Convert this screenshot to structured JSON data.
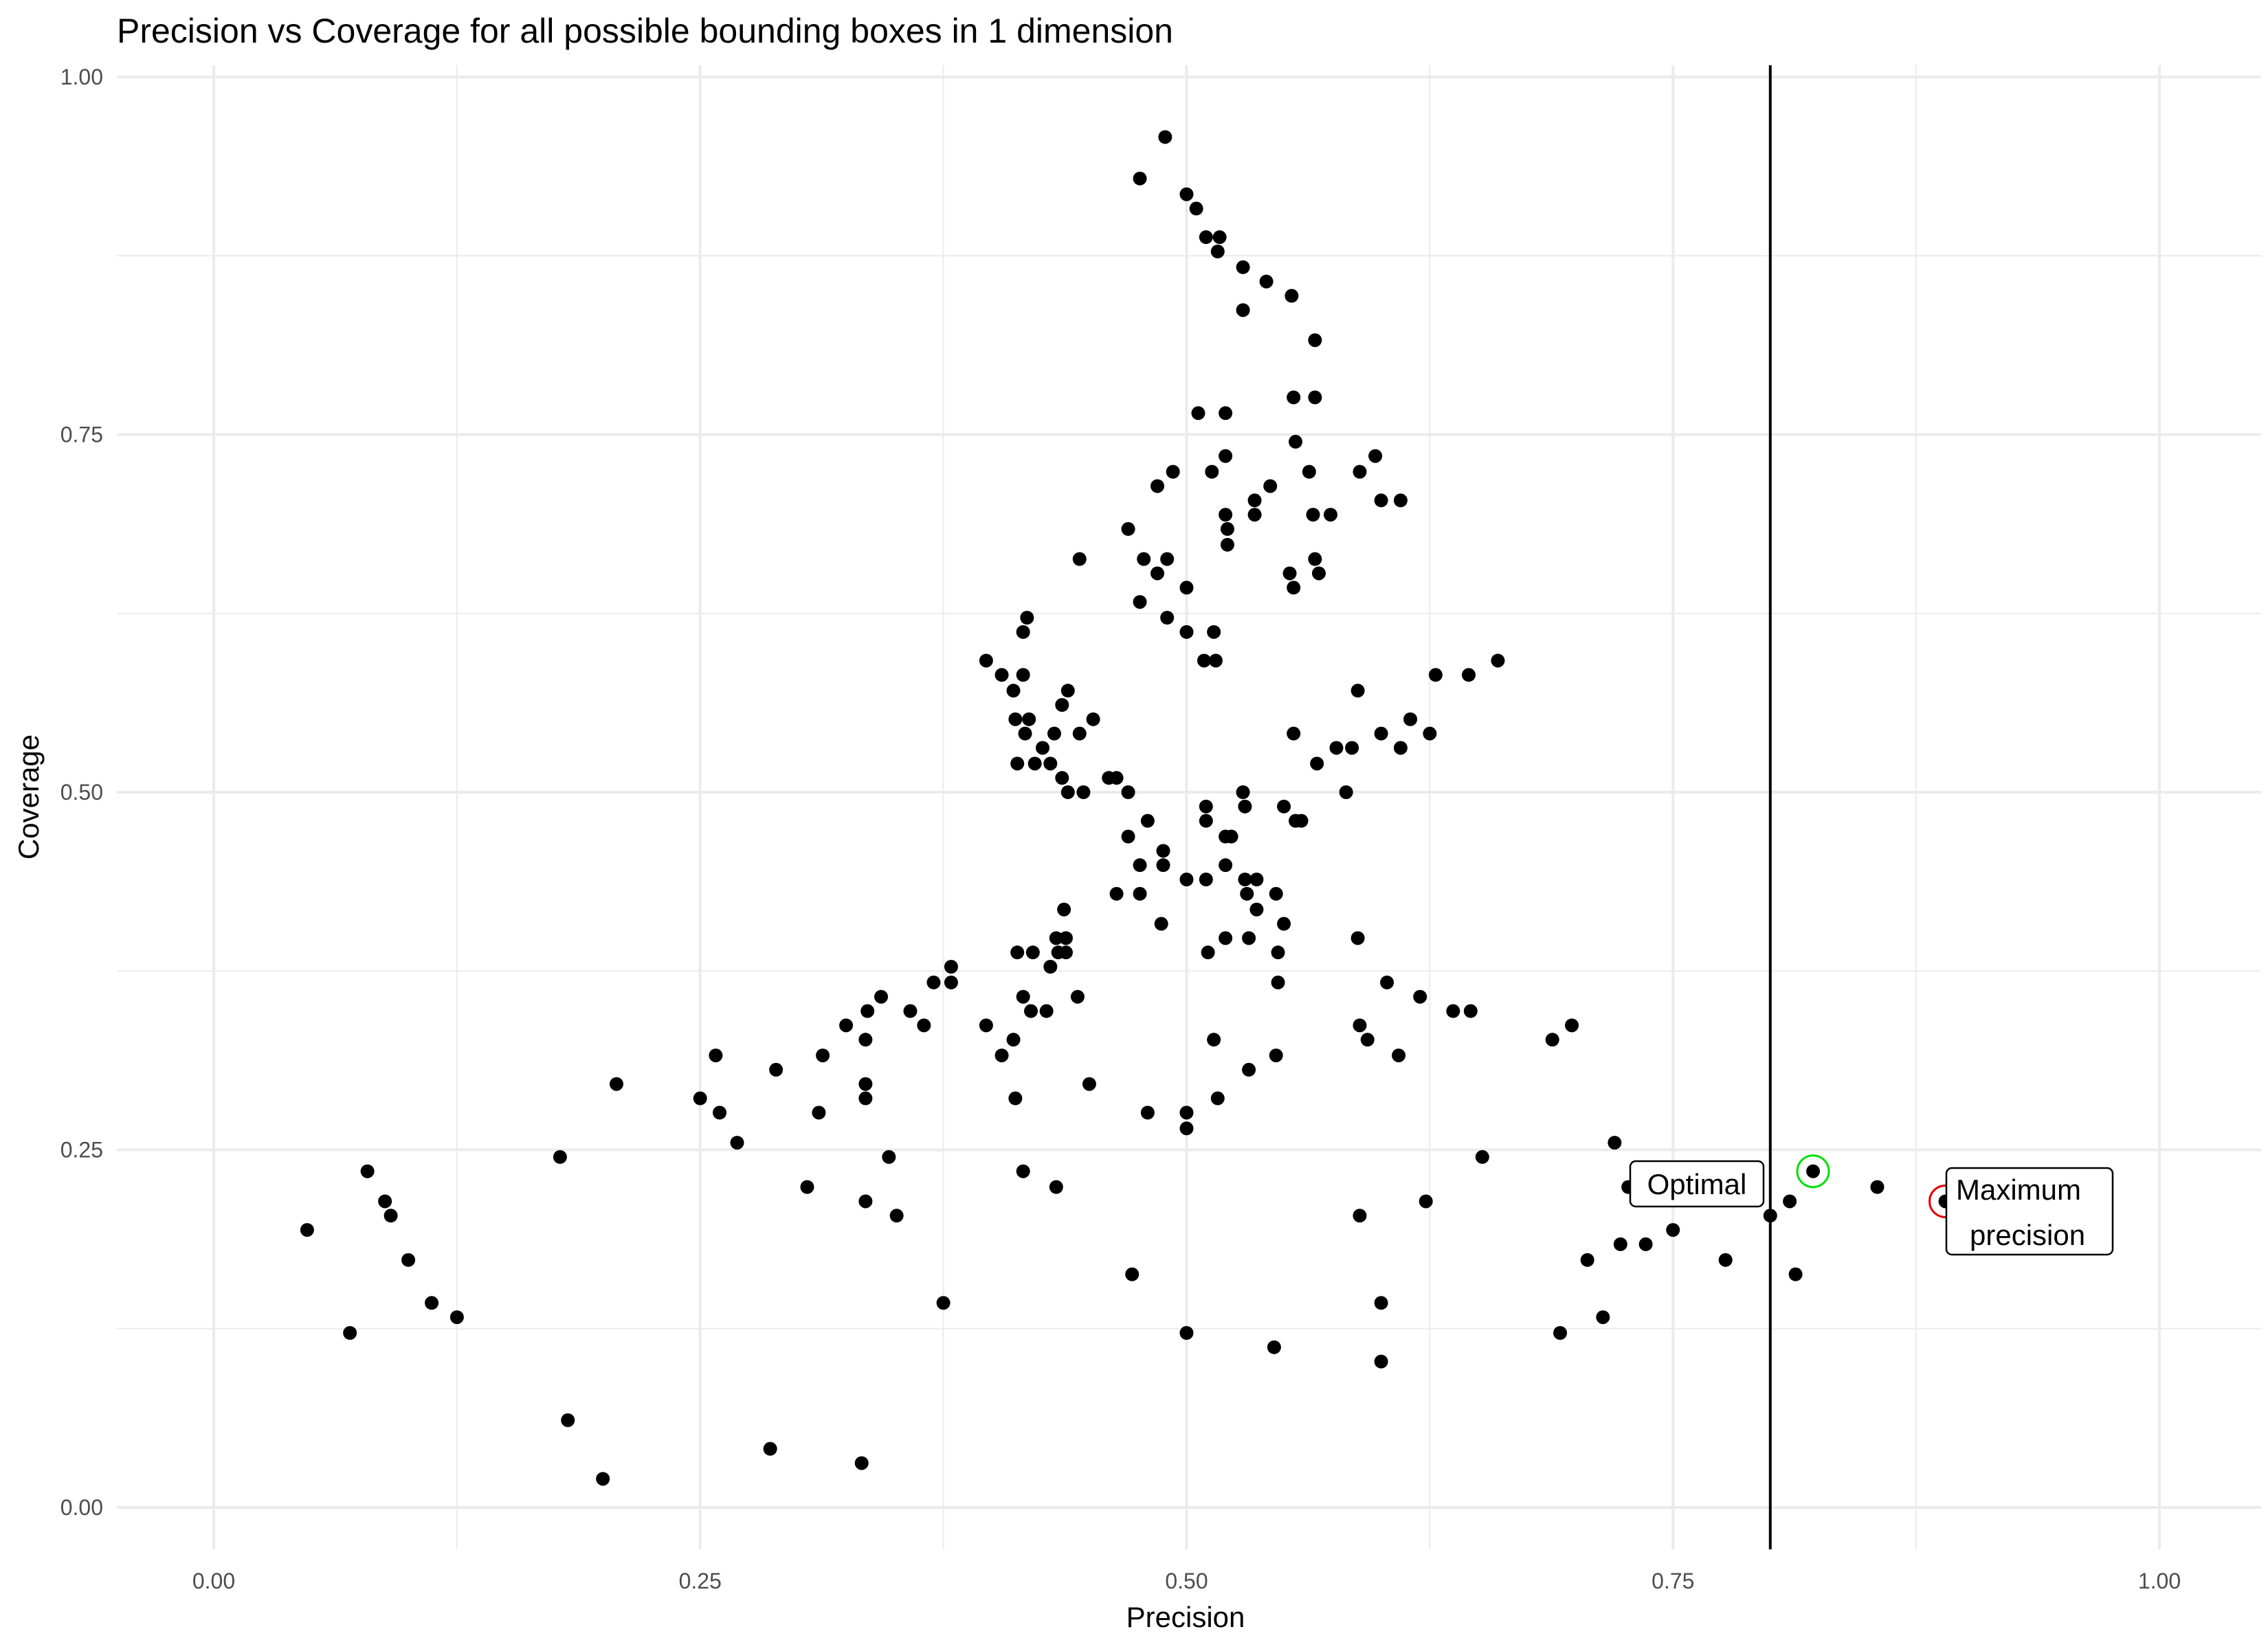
{
  "chart_data": {
    "type": "scatter",
    "title": "Precision vs Coverage for all possible bounding boxes in 1 dimension",
    "xlabel": "Precision",
    "ylabel": "Coverage",
    "xlim": [
      -0.05,
      1.05
    ],
    "ylim": [
      -0.03,
      1.01
    ],
    "x_ticks": [
      0,
      0.25,
      0.5,
      0.75,
      1
    ],
    "x_tick_labels": [
      "0.00",
      "0.25",
      "0.50",
      "0.75",
      "1.00"
    ],
    "y_ticks": [
      0,
      0.25,
      0.5,
      0.75,
      1
    ],
    "y_tick_labels": [
      "0.00",
      "0.25",
      "0.50",
      "0.75",
      "1.00"
    ],
    "grid": true,
    "vline": 0.8,
    "points": [
      [
        0.489,
        0.958
      ],
      [
        0.476,
        0.929
      ],
      [
        0.5,
        0.918
      ],
      [
        0.505,
        0.908
      ],
      [
        0.51,
        0.888
      ],
      [
        0.517,
        0.888
      ],
      [
        0.516,
        0.878
      ],
      [
        0.529,
        0.867
      ],
      [
        0.541,
        0.857
      ],
      [
        0.554,
        0.847
      ],
      [
        0.529,
        0.837
      ],
      [
        0.566,
        0.816
      ],
      [
        0.506,
        0.765
      ],
      [
        0.52,
        0.765
      ],
      [
        0.555,
        0.776
      ],
      [
        0.566,
        0.776
      ],
      [
        0.556,
        0.745
      ],
      [
        0.52,
        0.735
      ],
      [
        0.597,
        0.735
      ],
      [
        0.493,
        0.724
      ],
      [
        0.513,
        0.724
      ],
      [
        0.563,
        0.724
      ],
      [
        0.589,
        0.724
      ],
      [
        0.485,
        0.714
      ],
      [
        0.543,
        0.714
      ],
      [
        0.535,
        0.704
      ],
      [
        0.6,
        0.704
      ],
      [
        0.61,
        0.704
      ],
      [
        0.52,
        0.694
      ],
      [
        0.535,
        0.694
      ],
      [
        0.565,
        0.694
      ],
      [
        0.574,
        0.694
      ],
      [
        0.521,
        0.684
      ],
      [
        0.47,
        0.684
      ],
      [
        0.521,
        0.673
      ],
      [
        0.445,
        0.663
      ],
      [
        0.478,
        0.663
      ],
      [
        0.49,
        0.663
      ],
      [
        0.566,
        0.663
      ],
      [
        0.485,
        0.653
      ],
      [
        0.553,
        0.653
      ],
      [
        0.568,
        0.653
      ],
      [
        0.5,
        0.643
      ],
      [
        0.555,
        0.643
      ],
      [
        0.476,
        0.633
      ],
      [
        0.49,
        0.622
      ],
      [
        0.418,
        0.622
      ],
      [
        0.416,
        0.612
      ],
      [
        0.5,
        0.612
      ],
      [
        0.514,
        0.612
      ],
      [
        0.509,
        0.592
      ],
      [
        0.515,
        0.592
      ],
      [
        0.397,
        0.592
      ],
      [
        0.66,
        0.592
      ],
      [
        0.405,
        0.582
      ],
      [
        0.416,
        0.582
      ],
      [
        0.628,
        0.582
      ],
      [
        0.645,
        0.582
      ],
      [
        0.411,
        0.571
      ],
      [
        0.439,
        0.571
      ],
      [
        0.588,
        0.571
      ],
      [
        0.436,
        0.561
      ],
      [
        0.412,
        0.551
      ],
      [
        0.419,
        0.551
      ],
      [
        0.452,
        0.551
      ],
      [
        0.615,
        0.551
      ],
      [
        0.417,
        0.541
      ],
      [
        0.432,
        0.541
      ],
      [
        0.445,
        0.541
      ],
      [
        0.555,
        0.541
      ],
      [
        0.6,
        0.541
      ],
      [
        0.625,
        0.541
      ],
      [
        0.426,
        0.531
      ],
      [
        0.577,
        0.531
      ],
      [
        0.585,
        0.531
      ],
      [
        0.61,
        0.531
      ],
      [
        0.413,
        0.52
      ],
      [
        0.422,
        0.52
      ],
      [
        0.43,
        0.52
      ],
      [
        0.567,
        0.52
      ],
      [
        0.436,
        0.51
      ],
      [
        0.46,
        0.51
      ],
      [
        0.464,
        0.51
      ],
      [
        0.439,
        0.5
      ],
      [
        0.447,
        0.5
      ],
      [
        0.47,
        0.5
      ],
      [
        0.529,
        0.5
      ],
      [
        0.582,
        0.5
      ],
      [
        0.51,
        0.49
      ],
      [
        0.53,
        0.49
      ],
      [
        0.55,
        0.49
      ],
      [
        0.48,
        0.48
      ],
      [
        0.51,
        0.48
      ],
      [
        0.556,
        0.48
      ],
      [
        0.559,
        0.48
      ],
      [
        0.47,
        0.469
      ],
      [
        0.52,
        0.469
      ],
      [
        0.523,
        0.469
      ],
      [
        0.488,
        0.459
      ],
      [
        0.476,
        0.449
      ],
      [
        0.488,
        0.449
      ],
      [
        0.52,
        0.449
      ],
      [
        0.5,
        0.439
      ],
      [
        0.51,
        0.439
      ],
      [
        0.53,
        0.439
      ],
      [
        0.536,
        0.439
      ],
      [
        0.464,
        0.429
      ],
      [
        0.476,
        0.429
      ],
      [
        0.531,
        0.429
      ],
      [
        0.546,
        0.429
      ],
      [
        0.437,
        0.418
      ],
      [
        0.536,
        0.418
      ],
      [
        0.487,
        0.408
      ],
      [
        0.55,
        0.408
      ],
      [
        0.433,
        0.398
      ],
      [
        0.438,
        0.398
      ],
      [
        0.52,
        0.398
      ],
      [
        0.532,
        0.398
      ],
      [
        0.588,
        0.398
      ],
      [
        0.413,
        0.388
      ],
      [
        0.421,
        0.388
      ],
      [
        0.434,
        0.388
      ],
      [
        0.438,
        0.388
      ],
      [
        0.511,
        0.388
      ],
      [
        0.547,
        0.388
      ],
      [
        0.43,
        0.378
      ],
      [
        0.379,
        0.378
      ],
      [
        0.37,
        0.367
      ],
      [
        0.379,
        0.367
      ],
      [
        0.547,
        0.367
      ],
      [
        0.603,
        0.367
      ],
      [
        0.343,
        0.357
      ],
      [
        0.416,
        0.357
      ],
      [
        0.444,
        0.357
      ],
      [
        0.62,
        0.357
      ],
      [
        0.336,
        0.347
      ],
      [
        0.358,
        0.347
      ],
      [
        0.42,
        0.347
      ],
      [
        0.428,
        0.347
      ],
      [
        0.637,
        0.347
      ],
      [
        0.646,
        0.347
      ],
      [
        0.325,
        0.337
      ],
      [
        0.365,
        0.337
      ],
      [
        0.397,
        0.337
      ],
      [
        0.589,
        0.337
      ],
      [
        0.698,
        0.337
      ],
      [
        0.335,
        0.327
      ],
      [
        0.411,
        0.327
      ],
      [
        0.514,
        0.327
      ],
      [
        0.593,
        0.327
      ],
      [
        0.688,
        0.327
      ],
      [
        0.258,
        0.316
      ],
      [
        0.313,
        0.316
      ],
      [
        0.405,
        0.316
      ],
      [
        0.546,
        0.316
      ],
      [
        0.609,
        0.316
      ],
      [
        0.289,
        0.306
      ],
      [
        0.532,
        0.306
      ],
      [
        0.207,
        0.296
      ],
      [
        0.335,
        0.296
      ],
      [
        0.45,
        0.296
      ],
      [
        0.25,
        0.286
      ],
      [
        0.335,
        0.286
      ],
      [
        0.412,
        0.286
      ],
      [
        0.516,
        0.286
      ],
      [
        0.26,
        0.276
      ],
      [
        0.311,
        0.276
      ],
      [
        0.48,
        0.276
      ],
      [
        0.5,
        0.276
      ],
      [
        0.5,
        0.265
      ],
      [
        0.269,
        0.255
      ],
      [
        0.72,
        0.255
      ],
      [
        0.178,
        0.245
      ],
      [
        0.347,
        0.245
      ],
      [
        0.652,
        0.245
      ],
      [
        0.079,
        0.235
      ],
      [
        0.416,
        0.235
      ],
      [
        0.305,
        0.224
      ],
      [
        0.433,
        0.224
      ],
      [
        0.727,
        0.224
      ],
      [
        0.855,
        0.224
      ],
      [
        0.822,
        0.235
      ],
      [
        0.088,
        0.214
      ],
      [
        0.335,
        0.214
      ],
      [
        0.623,
        0.214
      ],
      [
        0.81,
        0.214
      ],
      [
        0.89,
        0.214
      ],
      [
        0.091,
        0.204
      ],
      [
        0.351,
        0.204
      ],
      [
        0.589,
        0.204
      ],
      [
        0.8,
        0.204
      ],
      [
        0.048,
        0.194
      ],
      [
        0.75,
        0.194
      ],
      [
        0.723,
        0.184
      ],
      [
        0.736,
        0.184
      ],
      [
        0.1,
        0.173
      ],
      [
        0.706,
        0.173
      ],
      [
        0.777,
        0.173
      ],
      [
        0.472,
        0.163
      ],
      [
        0.813,
        0.163
      ],
      [
        0.112,
        0.143
      ],
      [
        0.375,
        0.143
      ],
      [
        0.6,
        0.143
      ],
      [
        0.125,
        0.133
      ],
      [
        0.714,
        0.133
      ],
      [
        0.07,
        0.122
      ],
      [
        0.5,
        0.122
      ],
      [
        0.692,
        0.122
      ],
      [
        0.545,
        0.112
      ],
      [
        0.6,
        0.102
      ],
      [
        0.182,
        0.061
      ],
      [
        0.286,
        0.041
      ],
      [
        0.333,
        0.031
      ],
      [
        0.2,
        0.02
      ]
    ],
    "highlighted_points": [
      {
        "label": "Optimal",
        "x": 0.822,
        "y": 0.235,
        "color": "#00e000"
      },
      {
        "label": "Maximum precision",
        "x": 0.89,
        "y": 0.214,
        "color": "#e00000"
      }
    ],
    "annotations": {
      "optimal": "Optimal",
      "max_line1": "Maximum",
      "max_line2": "precision"
    }
  }
}
